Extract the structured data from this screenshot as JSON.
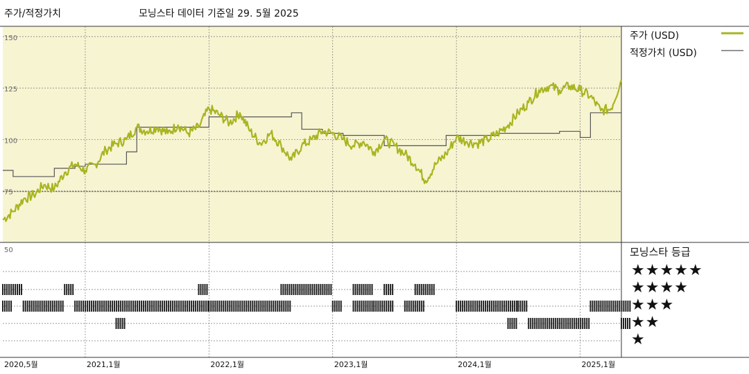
{
  "header": {
    "title": "주가/적정가치",
    "source": "모닝스타 데이터 기준일 29. 5월 2025"
  },
  "legend": {
    "price_label": "주가 (USD)",
    "fair_label": "적정가치 (USD)",
    "price_color": "#a8b520",
    "fair_color": "#555555"
  },
  "rating": {
    "title": "모닝스타 등급",
    "levels": [
      "★★★★★",
      "★★★★",
      "★★★",
      "★★",
      "★"
    ]
  },
  "colors": {
    "panel_bg": "#f7f4d2",
    "grid": "#777777",
    "bar": "#222222"
  },
  "chart_data": {
    "type": "line",
    "x_start": "2020-05",
    "x_end": "2025-05",
    "ylim": [
      50,
      155
    ],
    "yticks": [
      150,
      125,
      100,
      75,
      50
    ],
    "x_tick_labels": [
      "2020,5월",
      "2021,1월",
      "2022,1월",
      "2023,1월",
      "2024,1월",
      "2025,1월"
    ],
    "x_tick_dates": [
      "2020-05",
      "2021-01",
      "2022-01",
      "2023-01",
      "2024-01",
      "2025-01"
    ],
    "grid": true,
    "legend_position": "right",
    "series": [
      {
        "name": "주가 (USD)",
        "points": [
          [
            "2020-05",
            61
          ],
          [
            "2020-06",
            65
          ],
          [
            "2020-07",
            71
          ],
          [
            "2020-08",
            73
          ],
          [
            "2020-09",
            78
          ],
          [
            "2020-10",
            76
          ],
          [
            "2020-11",
            84
          ],
          [
            "2020-12",
            88
          ],
          [
            "2021-01",
            85
          ],
          [
            "2021-02",
            88
          ],
          [
            "2021-03",
            95
          ],
          [
            "2021-04",
            98
          ],
          [
            "2021-05",
            100
          ],
          [
            "2021-06",
            106
          ],
          [
            "2021-07",
            104
          ],
          [
            "2021-08",
            106
          ],
          [
            "2021-09",
            103
          ],
          [
            "2021-10",
            107
          ],
          [
            "2021-11",
            103
          ],
          [
            "2021-12",
            106
          ],
          [
            "2022-01",
            115
          ],
          [
            "2022-02",
            112
          ],
          [
            "2022-03",
            108
          ],
          [
            "2022-04",
            113
          ],
          [
            "2022-05",
            104
          ],
          [
            "2022-06",
            98
          ],
          [
            "2022-07",
            103
          ],
          [
            "2022-08",
            97
          ],
          [
            "2022-09",
            90
          ],
          [
            "2022-10",
            97
          ],
          [
            "2022-11",
            100
          ],
          [
            "2022-12",
            104
          ],
          [
            "2023-01",
            103
          ],
          [
            "2023-02",
            100
          ],
          [
            "2023-03",
            97
          ],
          [
            "2023-04",
            99
          ],
          [
            "2023-05",
            94
          ],
          [
            "2023-06",
            100
          ],
          [
            "2023-07",
            97
          ],
          [
            "2023-08",
            93
          ],
          [
            "2023-09",
            88
          ],
          [
            "2023-10",
            80
          ],
          [
            "2023-11",
            88
          ],
          [
            "2023-12",
            93
          ],
          [
            "2024-01",
            101
          ],
          [
            "2024-02",
            99
          ],
          [
            "2024-03",
            98
          ],
          [
            "2024-04",
            100
          ],
          [
            "2024-05",
            103
          ],
          [
            "2024-06",
            107
          ],
          [
            "2024-07",
            113
          ],
          [
            "2024-08",
            118
          ],
          [
            "2024-09",
            124
          ],
          [
            "2024-10",
            126
          ],
          [
            "2024-11",
            124
          ],
          [
            "2024-12",
            126
          ],
          [
            "2025-01",
            124
          ],
          [
            "2025-02",
            121
          ],
          [
            "2025-03",
            114
          ],
          [
            "2025-04",
            115
          ],
          [
            "2025-05",
            129
          ]
        ]
      },
      {
        "name": "적정가치 (USD)",
        "steps": [
          [
            "2020-05",
            85
          ],
          [
            "2020-06",
            82
          ],
          [
            "2020-10",
            86
          ],
          [
            "2020-12",
            87
          ],
          [
            "2021-01",
            88
          ],
          [
            "2021-05",
            94
          ],
          [
            "2021-06",
            106
          ],
          [
            "2022-01",
            111
          ],
          [
            "2022-09",
            113
          ],
          [
            "2022-10",
            105
          ],
          [
            "2022-12",
            103
          ],
          [
            "2023-02",
            102
          ],
          [
            "2023-06",
            97
          ],
          [
            "2023-12",
            102
          ],
          [
            "2024-05",
            103
          ],
          [
            "2024-06",
            103
          ],
          [
            "2024-11",
            104
          ],
          [
            "2025-01",
            101
          ],
          [
            "2025-02",
            113
          ]
        ]
      }
    ],
    "rating_history": [
      {
        "stars": 5,
        "ranges": [
          [
            "2020-05",
            "2020-06"
          ],
          [
            "2020-11",
            "2020-11"
          ],
          [
            "2021-12",
            "2021-12"
          ],
          [
            "2022-08",
            "2022-12"
          ],
          [
            "2023-03",
            "2023-04"
          ],
          [
            "2023-06",
            "2023-06"
          ],
          [
            "2023-09",
            "2023-10"
          ]
        ]
      },
      {
        "stars": 4,
        "ranges": []
      },
      {
        "stars": 3,
        "ranges": [
          [
            "2020-05",
            "2020-05"
          ],
          [
            "2020-07",
            "2020-10"
          ],
          [
            "2020-12",
            "2021-12"
          ],
          [
            "2022-01",
            "2022-08"
          ],
          [
            "2023-01",
            "2023-01"
          ],
          [
            "2023-03",
            "2023-04"
          ],
          [
            "2023-05",
            "2023-06"
          ],
          [
            "2023-08",
            "2023-09"
          ],
          [
            "2024-01",
            "2024-06"
          ],
          [
            "2024-07",
            "2024-07"
          ],
          [
            "2025-02",
            "2025-05"
          ]
        ]
      },
      {
        "stars": 2,
        "ranges": [
          [
            "2021-04",
            "2021-04"
          ],
          [
            "2024-06",
            "2024-06"
          ],
          [
            "2024-08",
            "2025-01"
          ],
          [
            "2025-05",
            "2025-05"
          ]
        ]
      },
      {
        "stars": 1,
        "ranges": []
      }
    ]
  }
}
